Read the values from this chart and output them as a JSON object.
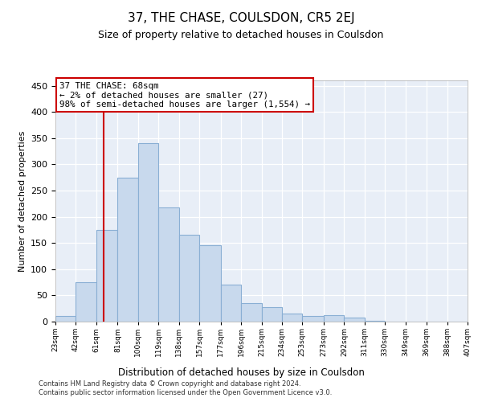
{
  "title": "37, THE CHASE, COULSDON, CR5 2EJ",
  "subtitle": "Size of property relative to detached houses in Coulsdon",
  "xlabel": "Distribution of detached houses by size in Coulsdon",
  "ylabel": "Number of detached properties",
  "property_label": "37 THE CHASE: 68sqm",
  "annotation_line1": "← 2% of detached houses are smaller (27)",
  "annotation_line2": "98% of semi-detached houses are larger (1,554) →",
  "bar_color": "#c8d9ed",
  "bar_edge_color": "#8aafd4",
  "vline_color": "#cc0000",
  "vline_x": 68,
  "annotation_box_facecolor": "#ffffff",
  "annotation_box_edgecolor": "#cc0000",
  "ylim": [
    0,
    460
  ],
  "yticks": [
    0,
    50,
    100,
    150,
    200,
    250,
    300,
    350,
    400,
    450
  ],
  "background_color": "#e8eef7",
  "grid_color": "#ffffff",
  "footer_line1": "Contains HM Land Registry data © Crown copyright and database right 2024.",
  "footer_line2": "Contains public sector information licensed under the Open Government Licence v3.0.",
  "bin_edges": [
    23,
    42,
    61,
    81,
    100,
    119,
    138,
    157,
    177,
    196,
    215,
    234,
    253,
    273,
    292,
    311,
    330,
    349,
    369,
    388,
    407
  ],
  "bin_heights": [
    10,
    75,
    175,
    275,
    340,
    218,
    165,
    145,
    70,
    35,
    28,
    16,
    10,
    13,
    7,
    2,
    0,
    0,
    0,
    0
  ]
}
